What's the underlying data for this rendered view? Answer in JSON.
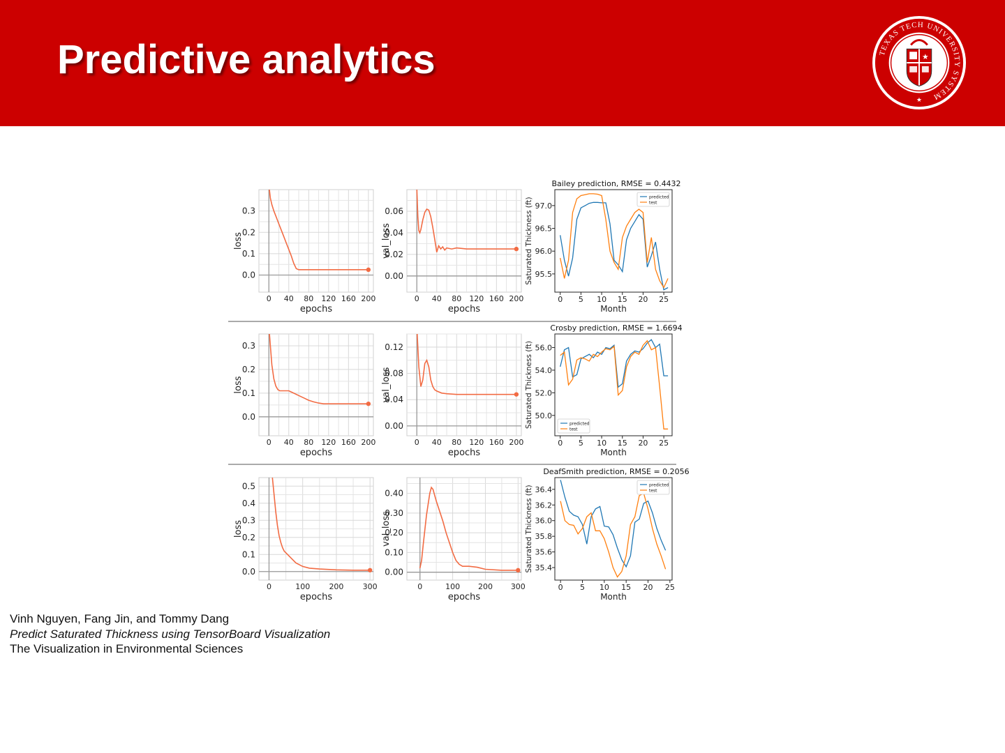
{
  "slide": {
    "title": "Predictive analytics",
    "seal_text": "TEXAS TECH UNIVERSITY SYSTEM",
    "colors": {
      "banner": "#cc0000",
      "loss_curve": "#f26b43",
      "predicted": "#1f77b4",
      "test": "#ff7f0e"
    }
  },
  "citation": {
    "authors": "Vinh Nguyen, Fang Jin, and Tommy Dang",
    "paper_title": "Predict Saturated Thickness using TensorBoard Visualization",
    "venue": "The Visualization in Environmental Sciences"
  },
  "chart_data": [
    {
      "type": "line",
      "title": "",
      "xlabel": "epochs",
      "ylabel": "loss",
      "xlim": [
        -20,
        210
      ],
      "ylim": [
        -0.08,
        0.4
      ],
      "xticks": [
        "0",
        "40",
        "80",
        "120",
        "160",
        "200"
      ],
      "yticks": [
        "0.0",
        "0.1",
        "0.2",
        "0.3"
      ],
      "grid": true,
      "series": [
        {
          "x": [
            0,
            3,
            6,
            10,
            15,
            20,
            25,
            30,
            35,
            40,
            45,
            50,
            55,
            60,
            80,
            100,
            150,
            200
          ],
          "values": [
            0.42,
            0.36,
            0.33,
            0.3,
            0.27,
            0.24,
            0.21,
            0.18,
            0.15,
            0.12,
            0.09,
            0.055,
            0.03,
            0.025,
            0.025,
            0.025,
            0.025,
            0.025
          ]
        }
      ]
    },
    {
      "type": "line",
      "title": "",
      "xlabel": "epochs",
      "ylabel": "val_loss",
      "xlim": [
        -20,
        210
      ],
      "ylim": [
        -0.015,
        0.08
      ],
      "xticks": [
        "0",
        "40",
        "80",
        "120",
        "160",
        "200"
      ],
      "yticks": [
        "0.00",
        "0.02",
        "0.04",
        "0.06"
      ],
      "grid": true,
      "series": [
        {
          "x": [
            0,
            2,
            4,
            6,
            8,
            12,
            16,
            20,
            24,
            28,
            32,
            36,
            40,
            44,
            48,
            52,
            56,
            60,
            70,
            80,
            100,
            150,
            200
          ],
          "values": [
            0.08,
            0.055,
            0.042,
            0.04,
            0.043,
            0.052,
            0.059,
            0.062,
            0.061,
            0.055,
            0.045,
            0.034,
            0.022,
            0.028,
            0.025,
            0.027,
            0.024,
            0.026,
            0.025,
            0.026,
            0.025,
            0.025,
            0.025
          ]
        }
      ]
    },
    {
      "type": "line",
      "title": "Bailey prediction, RMSE = 0.4432",
      "xlabel": "Month",
      "ylabel": "Saturated Thickness (ft)",
      "xlim": [
        -1.3,
        27
      ],
      "ylim": [
        95.1,
        97.35
      ],
      "xticks": [
        "0",
        "5",
        "10",
        "15",
        "20",
        "25"
      ],
      "yticks": [
        "95.5",
        "96.0",
        "96.5",
        "97.0"
      ],
      "grid": false,
      "legend": "top-right",
      "series": [
        {
          "name": "predicted",
          "x": [
            0,
            1,
            2,
            3,
            4,
            5,
            6,
            7,
            8,
            9,
            10,
            11,
            12,
            13,
            14,
            15,
            16,
            17,
            18,
            19,
            20,
            21,
            22,
            23,
            24,
            25,
            26
          ],
          "values": [
            96.35,
            95.8,
            95.45,
            95.85,
            96.7,
            96.95,
            97.0,
            97.05,
            97.07,
            97.07,
            97.06,
            97.06,
            96.6,
            95.8,
            95.7,
            95.55,
            96.25,
            96.5,
            96.65,
            96.8,
            96.7,
            95.65,
            95.9,
            96.2,
            95.6,
            95.15,
            95.2
          ]
        },
        {
          "name": "test",
          "x": [
            0,
            1,
            2,
            3,
            4,
            5,
            6,
            7,
            8,
            9,
            10,
            11,
            12,
            13,
            14,
            15,
            16,
            17,
            18,
            19,
            20,
            21,
            22,
            23,
            24,
            25,
            26
          ],
          "values": [
            95.85,
            95.4,
            95.8,
            96.85,
            97.15,
            97.22,
            97.24,
            97.26,
            97.26,
            97.25,
            97.22,
            96.7,
            96.0,
            95.75,
            95.6,
            96.3,
            96.55,
            96.7,
            96.85,
            96.92,
            96.85,
            95.75,
            96.3,
            95.6,
            95.35,
            95.2,
            95.4
          ]
        }
      ]
    },
    {
      "type": "line",
      "title": "",
      "xlabel": "epochs",
      "ylabel": "loss",
      "xlim": [
        -20,
        210
      ],
      "ylim": [
        -0.08,
        0.35
      ],
      "xticks": [
        "0",
        "40",
        "80",
        "120",
        "160",
        "200"
      ],
      "yticks": [
        "0.0",
        "0.1",
        "0.2",
        "0.3"
      ],
      "grid": true,
      "series": [
        {
          "x": [
            0,
            3,
            6,
            10,
            14,
            18,
            22,
            26,
            30,
            40,
            50,
            60,
            70,
            80,
            90,
            100,
            110,
            120,
            150,
            200
          ],
          "values": [
            0.38,
            0.3,
            0.22,
            0.16,
            0.13,
            0.115,
            0.11,
            0.11,
            0.11,
            0.11,
            0.1,
            0.09,
            0.08,
            0.07,
            0.063,
            0.058,
            0.055,
            0.055,
            0.055,
            0.055
          ]
        }
      ]
    },
    {
      "type": "line",
      "title": "",
      "xlabel": "epochs",
      "ylabel": "val_loss",
      "xlim": [
        -20,
        210
      ],
      "ylim": [
        -0.015,
        0.14
      ],
      "xticks": [
        "0",
        "40",
        "80",
        "120",
        "160",
        "200"
      ],
      "yticks": [
        "0.00",
        "0.04",
        "0.08",
        "0.12"
      ],
      "grid": true,
      "series": [
        {
          "x": [
            0,
            4,
            8,
            12,
            16,
            20,
            24,
            28,
            32,
            36,
            40,
            50,
            60,
            80,
            100,
            150,
            200
          ],
          "values": [
            0.15,
            0.09,
            0.06,
            0.07,
            0.095,
            0.1,
            0.09,
            0.07,
            0.06,
            0.055,
            0.053,
            0.05,
            0.049,
            0.048,
            0.048,
            0.048,
            0.048
          ]
        }
      ]
    },
    {
      "type": "line",
      "title": "Crosby prediction, RMSE = 1.6694",
      "xlabel": "Month",
      "ylabel": "Saturated Thickness (ft)",
      "xlim": [
        -1.3,
        27
      ],
      "ylim": [
        48.2,
        57.2
      ],
      "xticks": [
        "0",
        "5",
        "10",
        "15",
        "20",
        "25"
      ],
      "yticks": [
        "50.0",
        "52.0",
        "54.0",
        "56.0"
      ],
      "grid": false,
      "legend": "bottom-left",
      "series": [
        {
          "name": "predicted",
          "x": [
            0,
            1,
            2,
            3,
            4,
            5,
            6,
            7,
            8,
            9,
            10,
            11,
            12,
            13,
            14,
            15,
            16,
            17,
            18,
            19,
            20,
            21,
            22,
            23,
            24,
            25,
            26
          ],
          "values": [
            54.3,
            55.8,
            56.0,
            53.4,
            53.6,
            55.0,
            55.2,
            55.4,
            55.1,
            55.6,
            55.4,
            56.0,
            55.9,
            56.2,
            52.5,
            52.8,
            54.8,
            55.4,
            55.7,
            55.6,
            55.9,
            56.4,
            56.7,
            56.0,
            56.3,
            53.5,
            53.5
          ]
        },
        {
          "name": "test",
          "x": [
            0,
            1,
            2,
            3,
            4,
            5,
            6,
            7,
            8,
            9,
            10,
            11,
            12,
            13,
            14,
            15,
            16,
            17,
            18,
            19,
            20,
            21,
            22,
            23,
            24,
            25,
            26
          ],
          "values": [
            55.3,
            55.6,
            52.7,
            53.2,
            54.9,
            55.1,
            55.0,
            54.8,
            55.4,
            55.2,
            55.6,
            55.9,
            55.8,
            56.1,
            51.8,
            52.2,
            54.3,
            55.2,
            55.6,
            55.4,
            56.2,
            56.6,
            55.8,
            56.0,
            52.5,
            48.8,
            48.8
          ]
        }
      ]
    },
    {
      "type": "line",
      "title": "",
      "xlabel": "epochs",
      "ylabel": "loss",
      "xlim": [
        -30,
        310
      ],
      "ylim": [
        -0.05,
        0.55
      ],
      "xticks": [
        "0",
        "100",
        "200",
        "300"
      ],
      "yticks": [
        "0.0",
        "0.1",
        "0.2",
        "0.3",
        "0.4",
        "0.5"
      ],
      "grid": true,
      "series": [
        {
          "x": [
            10,
            15,
            20,
            25,
            30,
            35,
            40,
            45,
            50,
            60,
            70,
            80,
            100,
            120,
            150,
            200,
            250,
            300
          ],
          "values": [
            0.55,
            0.45,
            0.35,
            0.27,
            0.21,
            0.17,
            0.14,
            0.12,
            0.11,
            0.09,
            0.07,
            0.05,
            0.03,
            0.02,
            0.015,
            0.01,
            0.008,
            0.008
          ]
        }
      ]
    },
    {
      "type": "line",
      "title": "",
      "xlabel": "epochs",
      "ylabel": "val_loss",
      "xlim": [
        -40,
        310
      ],
      "ylim": [
        -0.04,
        0.48
      ],
      "xticks": [
        "0",
        "100",
        "200",
        "300"
      ],
      "yticks": [
        "0.00",
        "0.10",
        "0.20",
        "0.30",
        "0.40"
      ],
      "grid": true,
      "series": [
        {
          "x": [
            0,
            5,
            10,
            20,
            30,
            35,
            40,
            45,
            50,
            60,
            70,
            80,
            90,
            100,
            110,
            120,
            130,
            140,
            150,
            175,
            200,
            250,
            300
          ],
          "values": [
            0.02,
            0.06,
            0.14,
            0.29,
            0.4,
            0.43,
            0.42,
            0.39,
            0.36,
            0.31,
            0.26,
            0.2,
            0.15,
            0.1,
            0.06,
            0.04,
            0.03,
            0.03,
            0.03,
            0.025,
            0.015,
            0.01,
            0.01
          ]
        }
      ]
    },
    {
      "type": "line",
      "title": "DeafSmith prediction, RMSE = 0.2056",
      "xlabel": "Month",
      "ylabel": "Saturated Thickness (ft)",
      "xlim": [
        -1.3,
        25.5
      ],
      "ylim": [
        35.24,
        36.55
      ],
      "xticks": [
        "0",
        "5",
        "10",
        "15",
        "20",
        "25"
      ],
      "yticks": [
        "35.4",
        "35.6",
        "35.8",
        "36.0",
        "36.2",
        "36.4"
      ],
      "grid": false,
      "legend": "top-right",
      "series": [
        {
          "name": "predicted",
          "x": [
            0,
            1,
            2,
            3,
            4,
            5,
            6,
            7,
            8,
            9,
            10,
            11,
            12,
            13,
            14,
            15,
            16,
            17,
            18,
            19,
            20,
            21,
            22,
            23,
            24
          ],
          "values": [
            36.52,
            36.3,
            36.12,
            36.07,
            36.05,
            35.95,
            35.7,
            36.05,
            36.15,
            36.18,
            35.93,
            35.92,
            35.82,
            35.65,
            35.5,
            35.41,
            35.55,
            35.98,
            36.02,
            36.22,
            36.25,
            36.1,
            35.9,
            35.75,
            35.62
          ]
        },
        {
          "name": "test",
          "x": [
            0,
            1,
            2,
            3,
            4,
            5,
            6,
            7,
            8,
            9,
            10,
            11,
            12,
            13,
            14,
            15,
            16,
            17,
            18,
            19,
            20,
            21,
            22,
            23,
            24
          ],
          "values": [
            36.25,
            36.0,
            35.95,
            35.94,
            35.83,
            35.9,
            36.05,
            36.1,
            35.87,
            35.87,
            35.77,
            35.6,
            35.4,
            35.28,
            35.35,
            35.55,
            35.95,
            36.05,
            36.32,
            36.35,
            36.15,
            35.9,
            35.7,
            35.55,
            35.38
          ]
        }
      ]
    }
  ]
}
